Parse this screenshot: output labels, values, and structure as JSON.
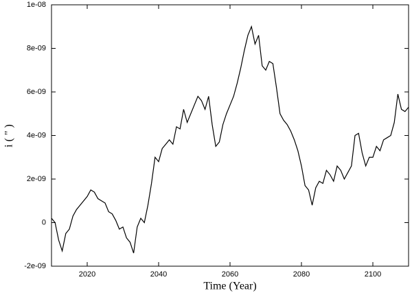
{
  "chart_data": {
    "type": "line",
    "xlabel": "Time (Year)",
    "ylabel": "i ( \" )",
    "xlim": [
      2010,
      2110
    ],
    "xticks": [
      2020,
      2040,
      2060,
      2080,
      2100
    ],
    "ylim": [
      -2e-09,
      1e-08
    ],
    "yticks": [
      {
        "value": -2e-09,
        "label": "-2e-09"
      },
      0,
      {
        "value": 2e-09,
        "label": "2e-09"
      },
      {
        "value": 4e-09,
        "label": "4e-09"
      },
      {
        "value": 6e-09,
        "label": "6e-09"
      },
      {
        "value": 8e-09,
        "label": "8e-09"
      },
      {
        "value": 1e-08,
        "label": "1e-08"
      }
    ],
    "color": "#000000",
    "x": [
      2010,
      2011,
      2012,
      2013,
      2014,
      2015,
      2016,
      2017,
      2018,
      2019,
      2020,
      2021,
      2022,
      2023,
      2024,
      2025,
      2026,
      2027,
      2028,
      2029,
      2030,
      2031,
      2032,
      2033,
      2034,
      2035,
      2036,
      2037,
      2038,
      2039,
      2040,
      2041,
      2042,
      2043,
      2044,
      2045,
      2046,
      2047,
      2048,
      2049,
      2050,
      2051,
      2052,
      2053,
      2054,
      2055,
      2056,
      2057,
      2058,
      2059,
      2060,
      2061,
      2062,
      2063,
      2064,
      2065,
      2066,
      2067,
      2068,
      2069,
      2070,
      2071,
      2072,
      2073,
      2074,
      2075,
      2076,
      2077,
      2078,
      2079,
      2080,
      2081,
      2082,
      2083,
      2084,
      2085,
      2086,
      2087,
      2088,
      2089,
      2090,
      2091,
      2092,
      2093,
      2094,
      2095,
      2096,
      2097,
      2098,
      2099,
      2100,
      2101,
      2102,
      2103,
      2104,
      2105,
      2106,
      2107,
      2108,
      2109,
      2110
    ],
    "values": [
      2e-10,
      0,
      -8e-10,
      -1.3e-09,
      -5e-10,
      -3e-10,
      3e-10,
      6e-10,
      8e-10,
      1e-09,
      1.2e-09,
      1.5e-09,
      1.4e-09,
      1.1e-09,
      1e-09,
      9e-10,
      5e-10,
      4e-10,
      1e-10,
      -3e-10,
      -2e-10,
      -7e-10,
      -9e-10,
      -1.4e-09,
      -2e-10,
      2e-10,
      0,
      8e-10,
      1.8e-09,
      3e-09,
      2.8e-09,
      3.4e-09,
      3.6e-09,
      3.8e-09,
      3.6e-09,
      4.4e-09,
      4.3e-09,
      5.2e-09,
      4.6e-09,
      5e-09,
      5.4e-09,
      5.8e-09,
      5.6e-09,
      5.2e-09,
      5.8e-09,
      4.5e-09,
      3.5e-09,
      3.7e-09,
      4.5e-09,
      5e-09,
      5.4e-09,
      5.8e-09,
      6.4e-09,
      7.1e-09,
      7.9e-09,
      8.6e-09,
      9e-09,
      8.2e-09,
      8.6e-09,
      7.2e-09,
      7e-09,
      7.4e-09,
      7.3e-09,
      6.2e-09,
      5e-09,
      4.7e-09,
      4.5e-09,
      4.2e-09,
      3.8e-09,
      3.3e-09,
      2.6e-09,
      1.7e-09,
      1.5e-09,
      8e-10,
      1.6e-09,
      1.9e-09,
      1.8e-09,
      2.4e-09,
      2.2e-09,
      1.9e-09,
      2.6e-09,
      2.4e-09,
      2e-09,
      2.3e-09,
      2.6e-09,
      4e-09,
      4.1e-09,
      3.2e-09,
      2.6e-09,
      3e-09,
      3e-09,
      3.5e-09,
      3.3e-09,
      3.8e-09,
      3.9e-09,
      4e-09,
      4.6e-09,
      5.9e-09,
      5.2e-09,
      5.1e-09,
      5.3e-09
    ]
  }
}
